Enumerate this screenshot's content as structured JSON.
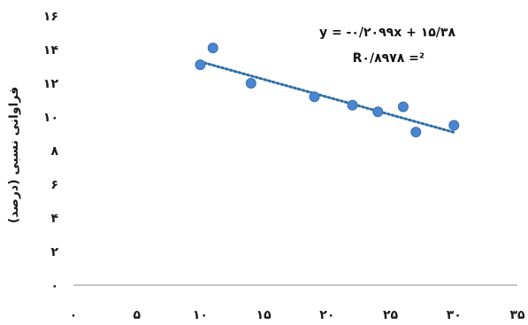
{
  "chart_data": {
    "type": "scatter",
    "title": "",
    "xlabel": "",
    "ylabel": "فراوانی نسبی (درصد)",
    "xlim": [
      0,
      35
    ],
    "ylim": [
      0,
      16
    ],
    "xticks": [
      0,
      5,
      10,
      15,
      20,
      25,
      30,
      35
    ],
    "yticks": [
      0,
      2,
      4,
      6,
      8,
      10,
      12,
      14,
      16
    ],
    "xtick_labels": [
      "۰",
      "۵",
      "۱۰",
      "۱۵",
      "۲۰",
      "۲۵",
      "۳۰",
      "۳۵"
    ],
    "ytick_labels": [
      "۰",
      "۲",
      "۴",
      "۶",
      "۸",
      "۱۰",
      "۱۲",
      "۱۴",
      "۱۶"
    ],
    "grid": false,
    "legend": "none",
    "series": [
      {
        "points": [
          {
            "x": 10,
            "y": 13.1
          },
          {
            "x": 11,
            "y": 14.1
          },
          {
            "x": 14,
            "y": 12.0
          },
          {
            "x": 19,
            "y": 11.2
          },
          {
            "x": 22,
            "y": 10.7
          },
          {
            "x": 24,
            "y": 10.3
          },
          {
            "x": 26,
            "y": 10.6
          },
          {
            "x": 27,
            "y": 9.1
          },
          {
            "x": 30,
            "y": 9.5
          }
        ],
        "color": "#4a86d0"
      }
    ],
    "trendline": {
      "type": "linear",
      "slope": -0.2099,
      "intercept": 15.38,
      "x_range": [
        10,
        30
      ],
      "color": "#2e6fa8",
      "style": "dotted"
    },
    "annotations": {
      "equation": "y = -۰/۲۰۹۹x + ۱۵/۳۸",
      "r_squared": "R۰/۸۹۷۸ =²"
    }
  }
}
